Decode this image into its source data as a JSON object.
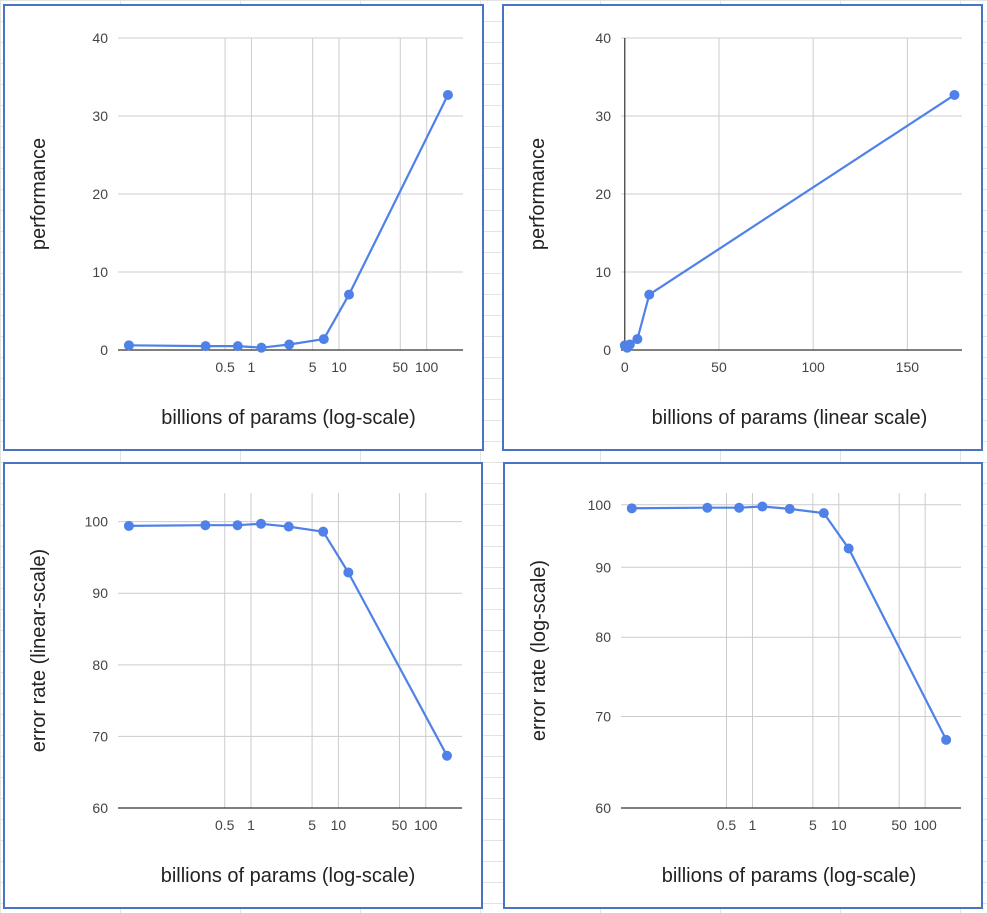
{
  "colors": {
    "series": "#4f81e8",
    "panel_border": "#4a73c4",
    "grid": "#cccccc",
    "axis": "#333333"
  },
  "chart_data": [
    {
      "id": "p1",
      "type": "line",
      "xscale": "log",
      "xlabel": "billions of params (log-scale)",
      "ylabel": "performance",
      "ylim": [
        0,
        40
      ],
      "grid": true,
      "x_ticks": [
        0.5,
        1,
        5,
        10,
        50,
        100
      ],
      "x_tick_labels": [
        "0.5",
        "1",
        "5",
        "10",
        "50",
        "100"
      ],
      "y_ticks": [
        0,
        10,
        20,
        30,
        40
      ],
      "y_tick_labels": [
        "0",
        "10",
        "20",
        "30",
        "40"
      ],
      "series": [
        {
          "x": [
            0.04,
            0.3,
            0.7,
            1.3,
            2.7,
            6.7,
            13,
            175
          ],
          "y": [
            0.6,
            0.5,
            0.5,
            0.3,
            0.7,
            1.4,
            7.1,
            32.7
          ]
        }
      ]
    },
    {
      "id": "p2",
      "type": "line",
      "xscale": "linear",
      "xlabel": "billions of params (linear scale)",
      "ylabel": "performance",
      "ylim": [
        0,
        40
      ],
      "grid": true,
      "x_ticks": [
        0,
        50,
        100,
        150
      ],
      "x_tick_labels": [
        "0",
        "50",
        "100",
        "150"
      ],
      "y_ticks": [
        0,
        10,
        20,
        30,
        40
      ],
      "y_tick_labels": [
        "0",
        "10",
        "20",
        "30",
        "40"
      ],
      "series": [
        {
          "x": [
            0.04,
            0.3,
            0.7,
            1.3,
            2.7,
            6.7,
            13,
            175
          ],
          "y": [
            0.6,
            0.5,
            0.5,
            0.3,
            0.7,
            1.4,
            7.1,
            32.7
          ]
        }
      ]
    },
    {
      "id": "p3",
      "type": "line",
      "xscale": "log",
      "yscale": "linear",
      "xlabel": "billions of params (log-scale)",
      "ylabel": "error rate (linear-scale)",
      "ylim": [
        60,
        104
      ],
      "grid": true,
      "x_ticks": [
        0.5,
        1,
        5,
        10,
        50,
        100
      ],
      "x_tick_labels": [
        "0.5",
        "1",
        "5",
        "10",
        "50",
        "100"
      ],
      "y_ticks": [
        60,
        70,
        80,
        90,
        100
      ],
      "y_tick_labels": [
        "60",
        "70",
        "80",
        "90",
        "100"
      ],
      "series": [
        {
          "x": [
            0.04,
            0.3,
            0.7,
            1.3,
            2.7,
            6.7,
            13,
            175
          ],
          "y": [
            99.4,
            99.5,
            99.5,
            99.7,
            99.3,
            98.6,
            92.9,
            67.3
          ]
        }
      ]
    },
    {
      "id": "p4",
      "type": "line",
      "xscale": "log",
      "yscale": "log",
      "xlabel": "billions of params (log-scale)",
      "ylabel": "error rate (log-scale)",
      "ylim": [
        60,
        102
      ],
      "grid": true,
      "x_ticks": [
        0.5,
        1,
        5,
        10,
        50,
        100
      ],
      "x_tick_labels": [
        "0.5",
        "1",
        "5",
        "10",
        "50",
        "100"
      ],
      "y_ticks": [
        60,
        70,
        80,
        90,
        100
      ],
      "y_tick_labels": [
        "60",
        "70",
        "80",
        "90",
        "100"
      ],
      "series": [
        {
          "x": [
            0.04,
            0.3,
            0.7,
            1.3,
            2.7,
            6.7,
            13,
            175
          ],
          "y": [
            99.4,
            99.5,
            99.5,
            99.7,
            99.3,
            98.6,
            92.9,
            67.3
          ]
        }
      ]
    }
  ]
}
